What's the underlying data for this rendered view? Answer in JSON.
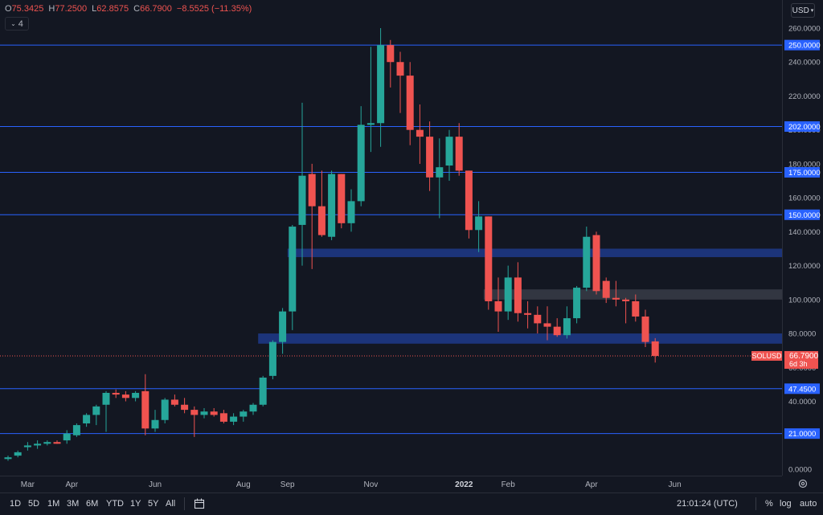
{
  "ohlc": {
    "o": "75.3425",
    "h": "77.2500",
    "l": "62.8575",
    "c": "66.7900",
    "change": "−8.5525 (−11.35%)"
  },
  "indicator_count": "4",
  "currency": "USD",
  "symbol": "SOLUSD",
  "last_price": "66.7900",
  "countdown": "6d 3h",
  "bottom": {
    "timeframes": [
      "1D",
      "5D",
      "1M",
      "3M",
      "6M",
      "YTD",
      "1Y",
      "5Y",
      "All"
    ],
    "time": "21:01:24 (UTC)",
    "percent_label": "%",
    "log_label": "log",
    "auto_label": "auto"
  },
  "colors": {
    "up": "#26a69a",
    "down": "#ef5350",
    "level": "#2962ff",
    "zone": "#1e3a8a",
    "grey_zone": "#363a45",
    "bg": "#131722"
  },
  "chart_data": {
    "type": "candlestick",
    "symbol": "SOLUSD",
    "timeframe": "weekly",
    "ylim": [
      0,
      270
    ],
    "y_ticks": [
      0,
      40,
      60,
      80,
      100,
      120,
      140,
      160,
      180,
      200,
      220,
      240,
      260
    ],
    "y_tick_labels": [
      "0.0000",
      "40.0000",
      "60.0000",
      "80.0000",
      "100.0000",
      "120.0000",
      "140.0000",
      "160.0000",
      "180.0000",
      "200.0000",
      "220.0000",
      "240.0000",
      "260.0000"
    ],
    "x_labels": [
      {
        "label": "Mar",
        "index": 2
      },
      {
        "label": "Apr",
        "index": 6.5
      },
      {
        "label": "Jun",
        "index": 15
      },
      {
        "label": "Aug",
        "index": 24
      },
      {
        "label": "Sep",
        "index": 28.5
      },
      {
        "label": "Nov",
        "index": 37
      },
      {
        "label": "2022",
        "index": 46.5
      },
      {
        "label": "Feb",
        "index": 51
      },
      {
        "label": "Apr",
        "index": 59.5
      },
      {
        "label": "Jun",
        "index": 68
      }
    ],
    "x_count": 73,
    "levels": [
      {
        "value": 250,
        "label": "250.0000"
      },
      {
        "value": 202,
        "label": "202.0000"
      },
      {
        "value": 175,
        "label": "175.0000"
      },
      {
        "value": 150,
        "label": "150.0000"
      },
      {
        "value": 47.45,
        "label": "47.4500"
      },
      {
        "value": 21,
        "label": "21.0000"
      }
    ],
    "zones": [
      {
        "low": 125,
        "high": 130,
        "from": 29,
        "color": "blue"
      },
      {
        "low": 100,
        "high": 106,
        "from": 49,
        "color": "grey"
      },
      {
        "low": 74,
        "high": 80,
        "from": 26,
        "color": "blue"
      }
    ],
    "last_price": 66.79,
    "candles": [
      {
        "o": 6,
        "h": 8,
        "l": 5,
        "c": 7
      },
      {
        "o": 8,
        "h": 11,
        "l": 7,
        "c": 10
      },
      {
        "o": 13,
        "h": 16,
        "l": 11,
        "c": 14
      },
      {
        "o": 14,
        "h": 17,
        "l": 12,
        "c": 15
      },
      {
        "o": 15,
        "h": 17,
        "l": 14,
        "c": 16
      },
      {
        "o": 16,
        "h": 17,
        "l": 15,
        "c": 15
      },
      {
        "o": 17,
        "h": 23,
        "l": 15,
        "c": 21
      },
      {
        "o": 20,
        "h": 27,
        "l": 19,
        "c": 26
      },
      {
        "o": 27,
        "h": 33,
        "l": 25,
        "c": 32
      },
      {
        "o": 32,
        "h": 38,
        "l": 26,
        "c": 37
      },
      {
        "o": 38,
        "h": 46,
        "l": 22,
        "c": 45
      },
      {
        "o": 45,
        "h": 47,
        "l": 42,
        "c": 44
      },
      {
        "o": 44,
        "h": 46,
        "l": 40,
        "c": 42
      },
      {
        "o": 42,
        "h": 46,
        "l": 40,
        "c": 45
      },
      {
        "o": 46,
        "h": 56,
        "l": 20,
        "c": 24
      },
      {
        "o": 24,
        "h": 35,
        "l": 22,
        "c": 29
      },
      {
        "o": 29,
        "h": 42,
        "l": 27,
        "c": 41
      },
      {
        "o": 41,
        "h": 44,
        "l": 37,
        "c": 38
      },
      {
        "o": 38,
        "h": 42,
        "l": 33,
        "c": 35
      },
      {
        "o": 35,
        "h": 37,
        "l": 19,
        "c": 32
      },
      {
        "o": 32,
        "h": 36,
        "l": 30,
        "c": 34
      },
      {
        "o": 34,
        "h": 36,
        "l": 31,
        "c": 32
      },
      {
        "o": 33,
        "h": 35,
        "l": 27,
        "c": 28
      },
      {
        "o": 28,
        "h": 33,
        "l": 26,
        "c": 31
      },
      {
        "o": 31,
        "h": 35,
        "l": 28,
        "c": 34
      },
      {
        "o": 34,
        "h": 39,
        "l": 32,
        "c": 38
      },
      {
        "o": 38,
        "h": 55,
        "l": 37,
        "c": 54
      },
      {
        "o": 55,
        "h": 76,
        "l": 53,
        "c": 75
      },
      {
        "o": 75,
        "h": 95,
        "l": 68,
        "c": 93
      },
      {
        "o": 93,
        "h": 144,
        "l": 82,
        "c": 143
      },
      {
        "o": 144,
        "h": 216,
        "l": 120,
        "c": 173
      },
      {
        "o": 174,
        "h": 180,
        "l": 118,
        "c": 155
      },
      {
        "o": 155,
        "h": 176,
        "l": 137,
        "c": 138
      },
      {
        "o": 137,
        "h": 176,
        "l": 135,
        "c": 174
      },
      {
        "o": 174,
        "h": 174,
        "l": 142,
        "c": 145
      },
      {
        "o": 145,
        "h": 165,
        "l": 140,
        "c": 158
      },
      {
        "o": 158,
        "h": 214,
        "l": 155,
        "c": 203
      },
      {
        "o": 203,
        "h": 249,
        "l": 187,
        "c": 204
      },
      {
        "o": 204,
        "h": 260,
        "l": 190,
        "c": 250
      },
      {
        "o": 250,
        "h": 253,
        "l": 225,
        "c": 240
      },
      {
        "o": 240,
        "h": 246,
        "l": 210,
        "c": 232
      },
      {
        "o": 232,
        "h": 240,
        "l": 191,
        "c": 200
      },
      {
        "o": 200,
        "h": 215,
        "l": 180,
        "c": 196
      },
      {
        "o": 196,
        "h": 205,
        "l": 164,
        "c": 172
      },
      {
        "o": 172,
        "h": 195,
        "l": 148,
        "c": 178
      },
      {
        "o": 179,
        "h": 200,
        "l": 170,
        "c": 196
      },
      {
        "o": 196,
        "h": 204,
        "l": 173,
        "c": 176
      },
      {
        "o": 176,
        "h": 176,
        "l": 136,
        "c": 141
      },
      {
        "o": 141,
        "h": 158,
        "l": 128,
        "c": 149
      },
      {
        "o": 149,
        "h": 149,
        "l": 94,
        "c": 99
      },
      {
        "o": 99,
        "h": 113,
        "l": 81,
        "c": 93
      },
      {
        "o": 93,
        "h": 120,
        "l": 88,
        "c": 113
      },
      {
        "o": 113,
        "h": 122,
        "l": 87,
        "c": 92
      },
      {
        "o": 92,
        "h": 99,
        "l": 83,
        "c": 91
      },
      {
        "o": 91,
        "h": 96,
        "l": 80,
        "c": 86
      },
      {
        "o": 86,
        "h": 96,
        "l": 76,
        "c": 84
      },
      {
        "o": 84,
        "h": 89,
        "l": 78,
        "c": 79
      },
      {
        "o": 79,
        "h": 96,
        "l": 77,
        "c": 89
      },
      {
        "o": 89,
        "h": 108,
        "l": 86,
        "c": 107
      },
      {
        "o": 107,
        "h": 143,
        "l": 105,
        "c": 137
      },
      {
        "o": 138,
        "h": 140,
        "l": 103,
        "c": 105
      },
      {
        "o": 111,
        "h": 113,
        "l": 98,
        "c": 101
      },
      {
        "o": 101,
        "h": 111,
        "l": 96,
        "c": 100
      },
      {
        "o": 100,
        "h": 101,
        "l": 86,
        "c": 99
      },
      {
        "o": 99,
        "h": 103,
        "l": 87,
        "c": 90
      },
      {
        "o": 90,
        "h": 94,
        "l": 72,
        "c": 75
      },
      {
        "o": 75.34,
        "h": 77.25,
        "l": 62.86,
        "c": 66.79
      }
    ]
  }
}
